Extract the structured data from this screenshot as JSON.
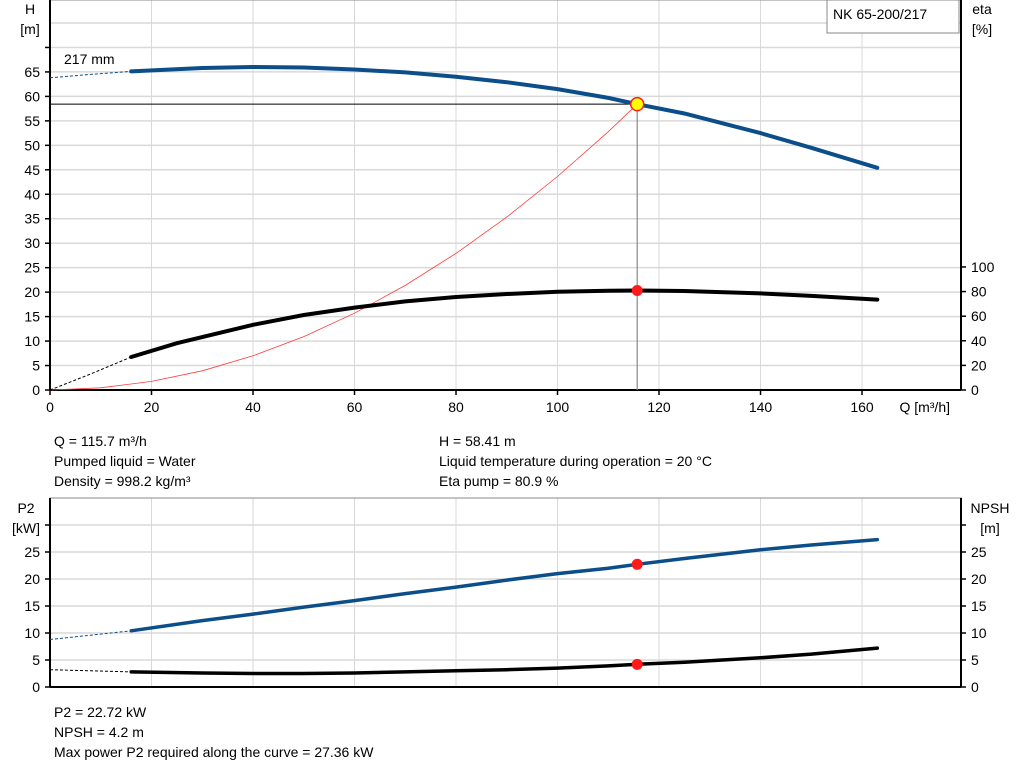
{
  "chart_data": [
    {
      "type": "line",
      "title_box": "NK 65-200/217",
      "curve_label": "217 mm",
      "xlabel": "Q [m³/h]",
      "ylabel_left": [
        "H",
        "[m]"
      ],
      "ylabel_right": [
        "eta",
        "[%]"
      ],
      "xlim": [
        0,
        179.5
      ],
      "xticks": [
        0,
        20,
        40,
        60,
        80,
        100,
        120,
        140,
        160
      ],
      "ylim_left": [
        0,
        79.7
      ],
      "yticks_left": [
        0,
        5,
        10,
        15,
        20,
        25,
        30,
        35,
        40,
        45,
        50,
        55,
        60,
        65
      ],
      "ylim_right": [
        0,
        317
      ],
      "yticks_right": [
        0,
        20,
        40,
        60,
        80,
        100
      ],
      "grid": true,
      "operating_point": {
        "Q": 115.7,
        "H": 58.41,
        "eta": 80.9
      },
      "series": [
        {
          "key": "H",
          "axis": "left",
          "color": "#0b4e8a",
          "dashed": {
            "x": [
              0,
              8,
              16
            ],
            "y": [
              63.8,
              64.5,
              65.1
            ]
          },
          "x": [
            16,
            30,
            40,
            50,
            60,
            70,
            80,
            90,
            100,
            110,
            115.7,
            125,
            140,
            150,
            163
          ],
          "y": [
            65.1,
            65.8,
            66.0,
            65.9,
            65.5,
            64.9,
            64.0,
            62.9,
            61.5,
            59.7,
            58.41,
            56.5,
            52.5,
            49.5,
            45.4
          ]
        },
        {
          "key": "eta",
          "axis": "right",
          "color": "#000000",
          "dashed": {
            "x": [
              0,
              8,
              16
            ],
            "y": [
              0,
              13,
              26.8
            ]
          },
          "x": [
            16,
            25,
            40,
            50,
            60,
            70,
            80,
            90,
            100,
            110,
            115.7,
            125,
            140,
            150,
            163
          ],
          "y": [
            26.8,
            38,
            53,
            61,
            67,
            72,
            75.6,
            78,
            79.8,
            80.7,
            80.9,
            80.5,
            78.5,
            76.5,
            73.5
          ]
        },
        {
          "key": "system",
          "axis": "left",
          "color": "#ff3b3b",
          "x": [
            0,
            10,
            20,
            30,
            40,
            50,
            60,
            70,
            80,
            90,
            100,
            110,
            115.7
          ],
          "y": [
            0,
            0.44,
            1.75,
            3.93,
            6.98,
            10.91,
            15.7,
            21.38,
            27.92,
            35.34,
            43.63,
            52.79,
            58.41
          ]
        }
      ]
    },
    {
      "type": "line",
      "ylabel_left": [
        "P2",
        "[kW]"
      ],
      "ylabel_right": [
        "NPSH",
        "[m]"
      ],
      "xlim": [
        0,
        179.5
      ],
      "ylim": [
        0,
        35
      ],
      "yticks": [
        0,
        5,
        10,
        15,
        20,
        25,
        30
      ],
      "yticklabels": [
        0,
        5,
        10,
        15,
        20,
        25
      ],
      "grid": true,
      "operating_point": {
        "Q": 115.7,
        "P2": 22.72,
        "NPSH": 4.2
      },
      "series": [
        {
          "key": "P2",
          "color": "#0b4e8a",
          "dashed": {
            "x": [
              0,
              8,
              16
            ],
            "y": [
              8.8,
              9.6,
              10.4
            ]
          },
          "x": [
            16,
            30,
            40,
            50,
            60,
            70,
            80,
            90,
            100,
            110,
            115.7,
            125,
            140,
            150,
            163
          ],
          "y": [
            10.4,
            12.3,
            13.5,
            14.8,
            16.0,
            17.3,
            18.5,
            19.8,
            21.0,
            22.0,
            22.72,
            23.8,
            25.4,
            26.3,
            27.3
          ]
        },
        {
          "key": "NPSH",
          "color": "#000000",
          "dashed": {
            "x": [
              0,
              8,
              16
            ],
            "y": [
              3.2,
              3.0,
              2.8
            ]
          },
          "x": [
            16,
            30,
            40,
            50,
            60,
            70,
            80,
            90,
            100,
            110,
            115.7,
            125,
            140,
            150,
            163
          ],
          "y": [
            2.8,
            2.6,
            2.5,
            2.5,
            2.6,
            2.8,
            3.0,
            3.2,
            3.5,
            3.9,
            4.2,
            4.6,
            5.4,
            6.1,
            7.2
          ]
        }
      ]
    }
  ],
  "info_top": {
    "left": [
      "Q = 115.7 m³/h",
      "Pumped liquid = Water",
      "Density = 998.2 kg/m³"
    ],
    "right": [
      "H = 58.41 m",
      "Liquid temperature during operation = 20 °C",
      "Eta pump = 80.9 %"
    ]
  },
  "info_bottom": [
    "P2 = 22.72 kW",
    "NPSH = 4.2 m",
    "Max power P2 required along the curve = 27.36 kW"
  ]
}
